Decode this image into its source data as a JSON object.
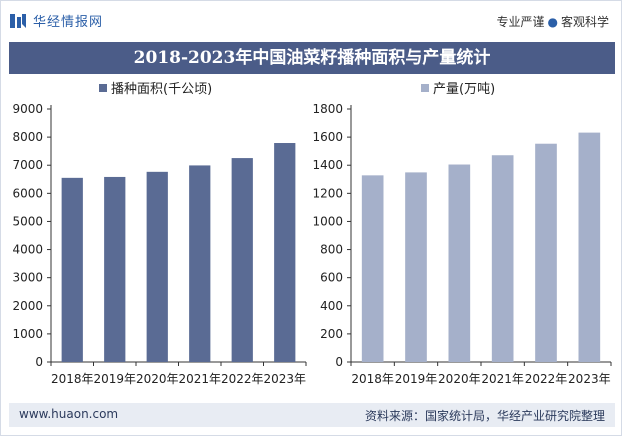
{
  "header": {
    "logo_text": "华经情报网",
    "tagline_left": "专业严谨",
    "tagline_right": "客观科学"
  },
  "title": "2018-2023年中国油菜籽播种面积与产量统计",
  "footer": {
    "url": "www.huaon.com",
    "source": "资料来源：国家统计局，华经产业研究院整理"
  },
  "colors": {
    "brand": "#2b5fa8",
    "title_bg": "#4b5c88",
    "area_bar": "#5a6b94",
    "output_bar": "#a5b0ca",
    "footer_bg": "#e8ecf3"
  },
  "chart_data": [
    {
      "type": "bar",
      "legend": "播种面积(千公顷)",
      "categories": [
        "2018年",
        "2019年",
        "2020年",
        "2021年",
        "2022年",
        "2023年"
      ],
      "values": [
        6551,
        6583,
        6765,
        6993,
        7254,
        7790
      ],
      "yticks": [
        "0",
        "1000",
        "2000",
        "3000",
        "4000",
        "5000",
        "6000",
        "7000",
        "8000",
        "9000"
      ],
      "ylim": [
        0,
        9000
      ],
      "grid": false,
      "legend_position": "top"
    },
    {
      "type": "bar",
      "legend": "产量(万吨)",
      "categories": [
        "2018年",
        "2019年",
        "2020年",
        "2021年",
        "2022年",
        "2023年"
      ],
      "values": [
        1328,
        1349,
        1405,
        1471,
        1553,
        1632
      ],
      "yticks": [
        "0",
        "200",
        "400",
        "600",
        "800",
        "1000",
        "1200",
        "1400",
        "1600",
        "1800"
      ],
      "ylim": [
        0,
        1800
      ],
      "grid": false,
      "legend_position": "top"
    }
  ]
}
